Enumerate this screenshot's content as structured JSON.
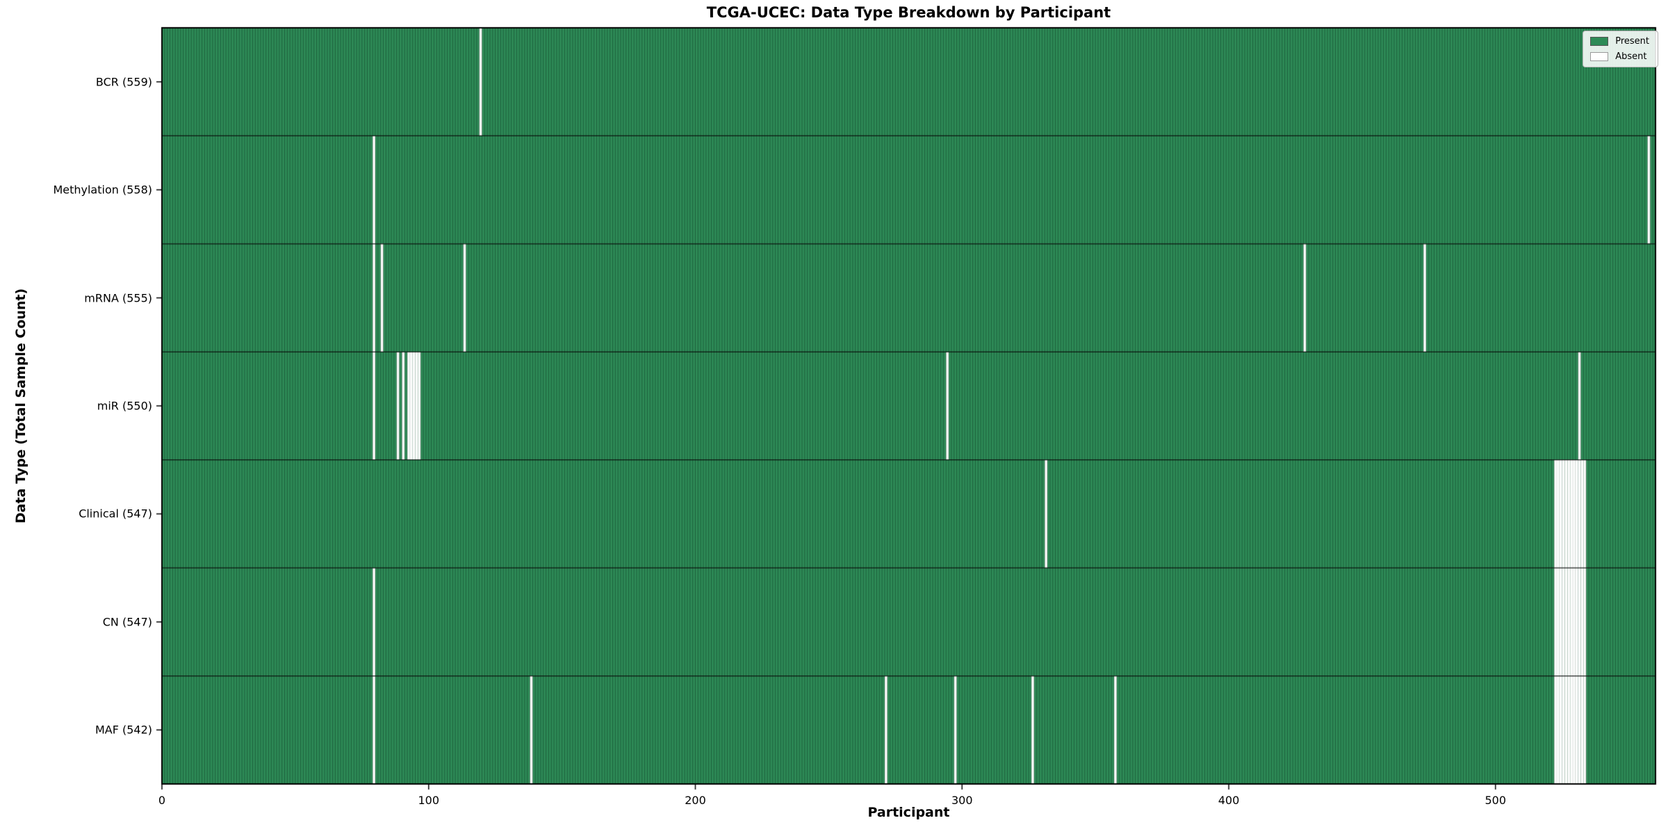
{
  "figure_bg": "#ffffff",
  "chart_data": {
    "type": "heatmap",
    "title": "TCGA-UCEC: Data Type Breakdown by Participant",
    "xlabel": "Participant",
    "ylabel": "Data Type (Total Sample Count)",
    "n_participants": 560,
    "x_ticks": [
      0,
      100,
      200,
      300,
      400,
      500
    ],
    "present_color": "#2e8b57",
    "absent_color": "#ffffff",
    "legend": [
      {
        "label": "Present",
        "color": "#2e8b57"
      },
      {
        "label": "Absent",
        "color": "#ffffff"
      }
    ],
    "rows": [
      {
        "label": "BCR (559)",
        "present_count": 559,
        "absent_participants": [
          119
        ]
      },
      {
        "label": "Methylation (558)",
        "present_count": 558,
        "absent_participants": [
          79,
          557
        ]
      },
      {
        "label": "mRNA (555)",
        "present_count": 555,
        "absent_participants": [
          79,
          82,
          113,
          428,
          473
        ]
      },
      {
        "label": "miR (550)",
        "present_count": 550,
        "absent_participants": [
          79,
          88,
          90,
          92,
          93,
          94,
          95,
          96,
          294,
          531
        ]
      },
      {
        "label": "Clinical (547)",
        "present_count": 547,
        "absent_participants": [
          331,
          522,
          523,
          524,
          525,
          526,
          527,
          528,
          529,
          530,
          531,
          532,
          533
        ]
      },
      {
        "label": "CN (547)",
        "present_count": 547,
        "absent_participants": [
          79,
          522,
          523,
          524,
          525,
          526,
          527,
          528,
          529,
          530,
          531,
          532,
          533
        ]
      },
      {
        "label": "MAF (542)",
        "present_count": 542,
        "absent_participants": [
          79,
          138,
          271,
          297,
          326,
          357,
          522,
          523,
          524,
          525,
          526,
          527,
          528,
          529,
          530,
          531,
          532,
          533
        ]
      }
    ]
  }
}
